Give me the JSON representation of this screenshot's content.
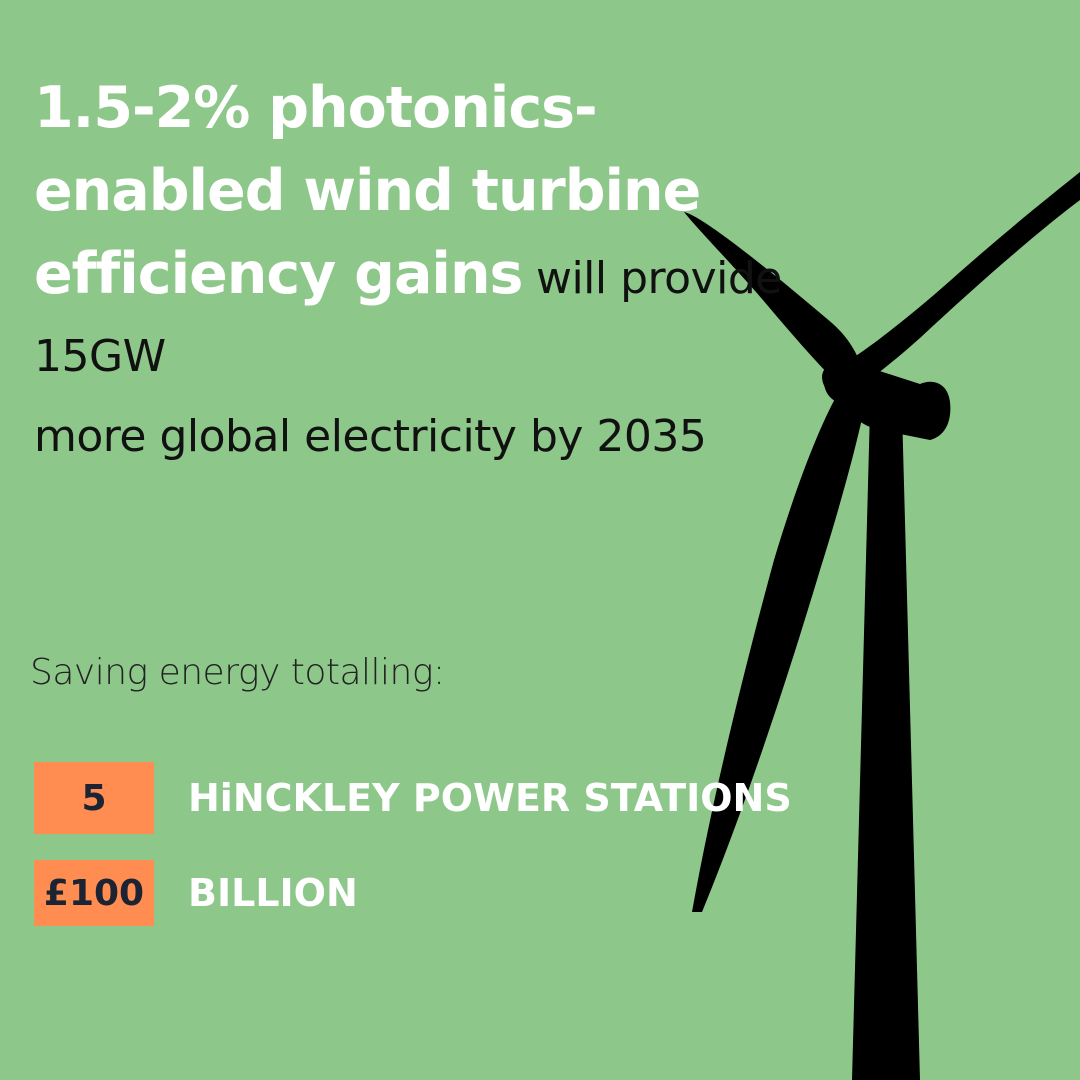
{
  "headline": {
    "bold_text": "1.5-2% photonics-enabled wind turbine efficiency gains",
    "line1_rest": " will provide 15GW",
    "line2": "more global electricity by 2035"
  },
  "subhead": "Saving energy totalling:",
  "stats": [
    {
      "value": "5",
      "label": "HiNCKLEY POWER STATIONS"
    },
    {
      "value": "£100",
      "label": "BILLION"
    }
  ],
  "colors": {
    "background": "#8dc78a",
    "highlight_box": "#ff8c50",
    "turbine": "#000000"
  },
  "illustration": "wind-turbine-silhouette"
}
